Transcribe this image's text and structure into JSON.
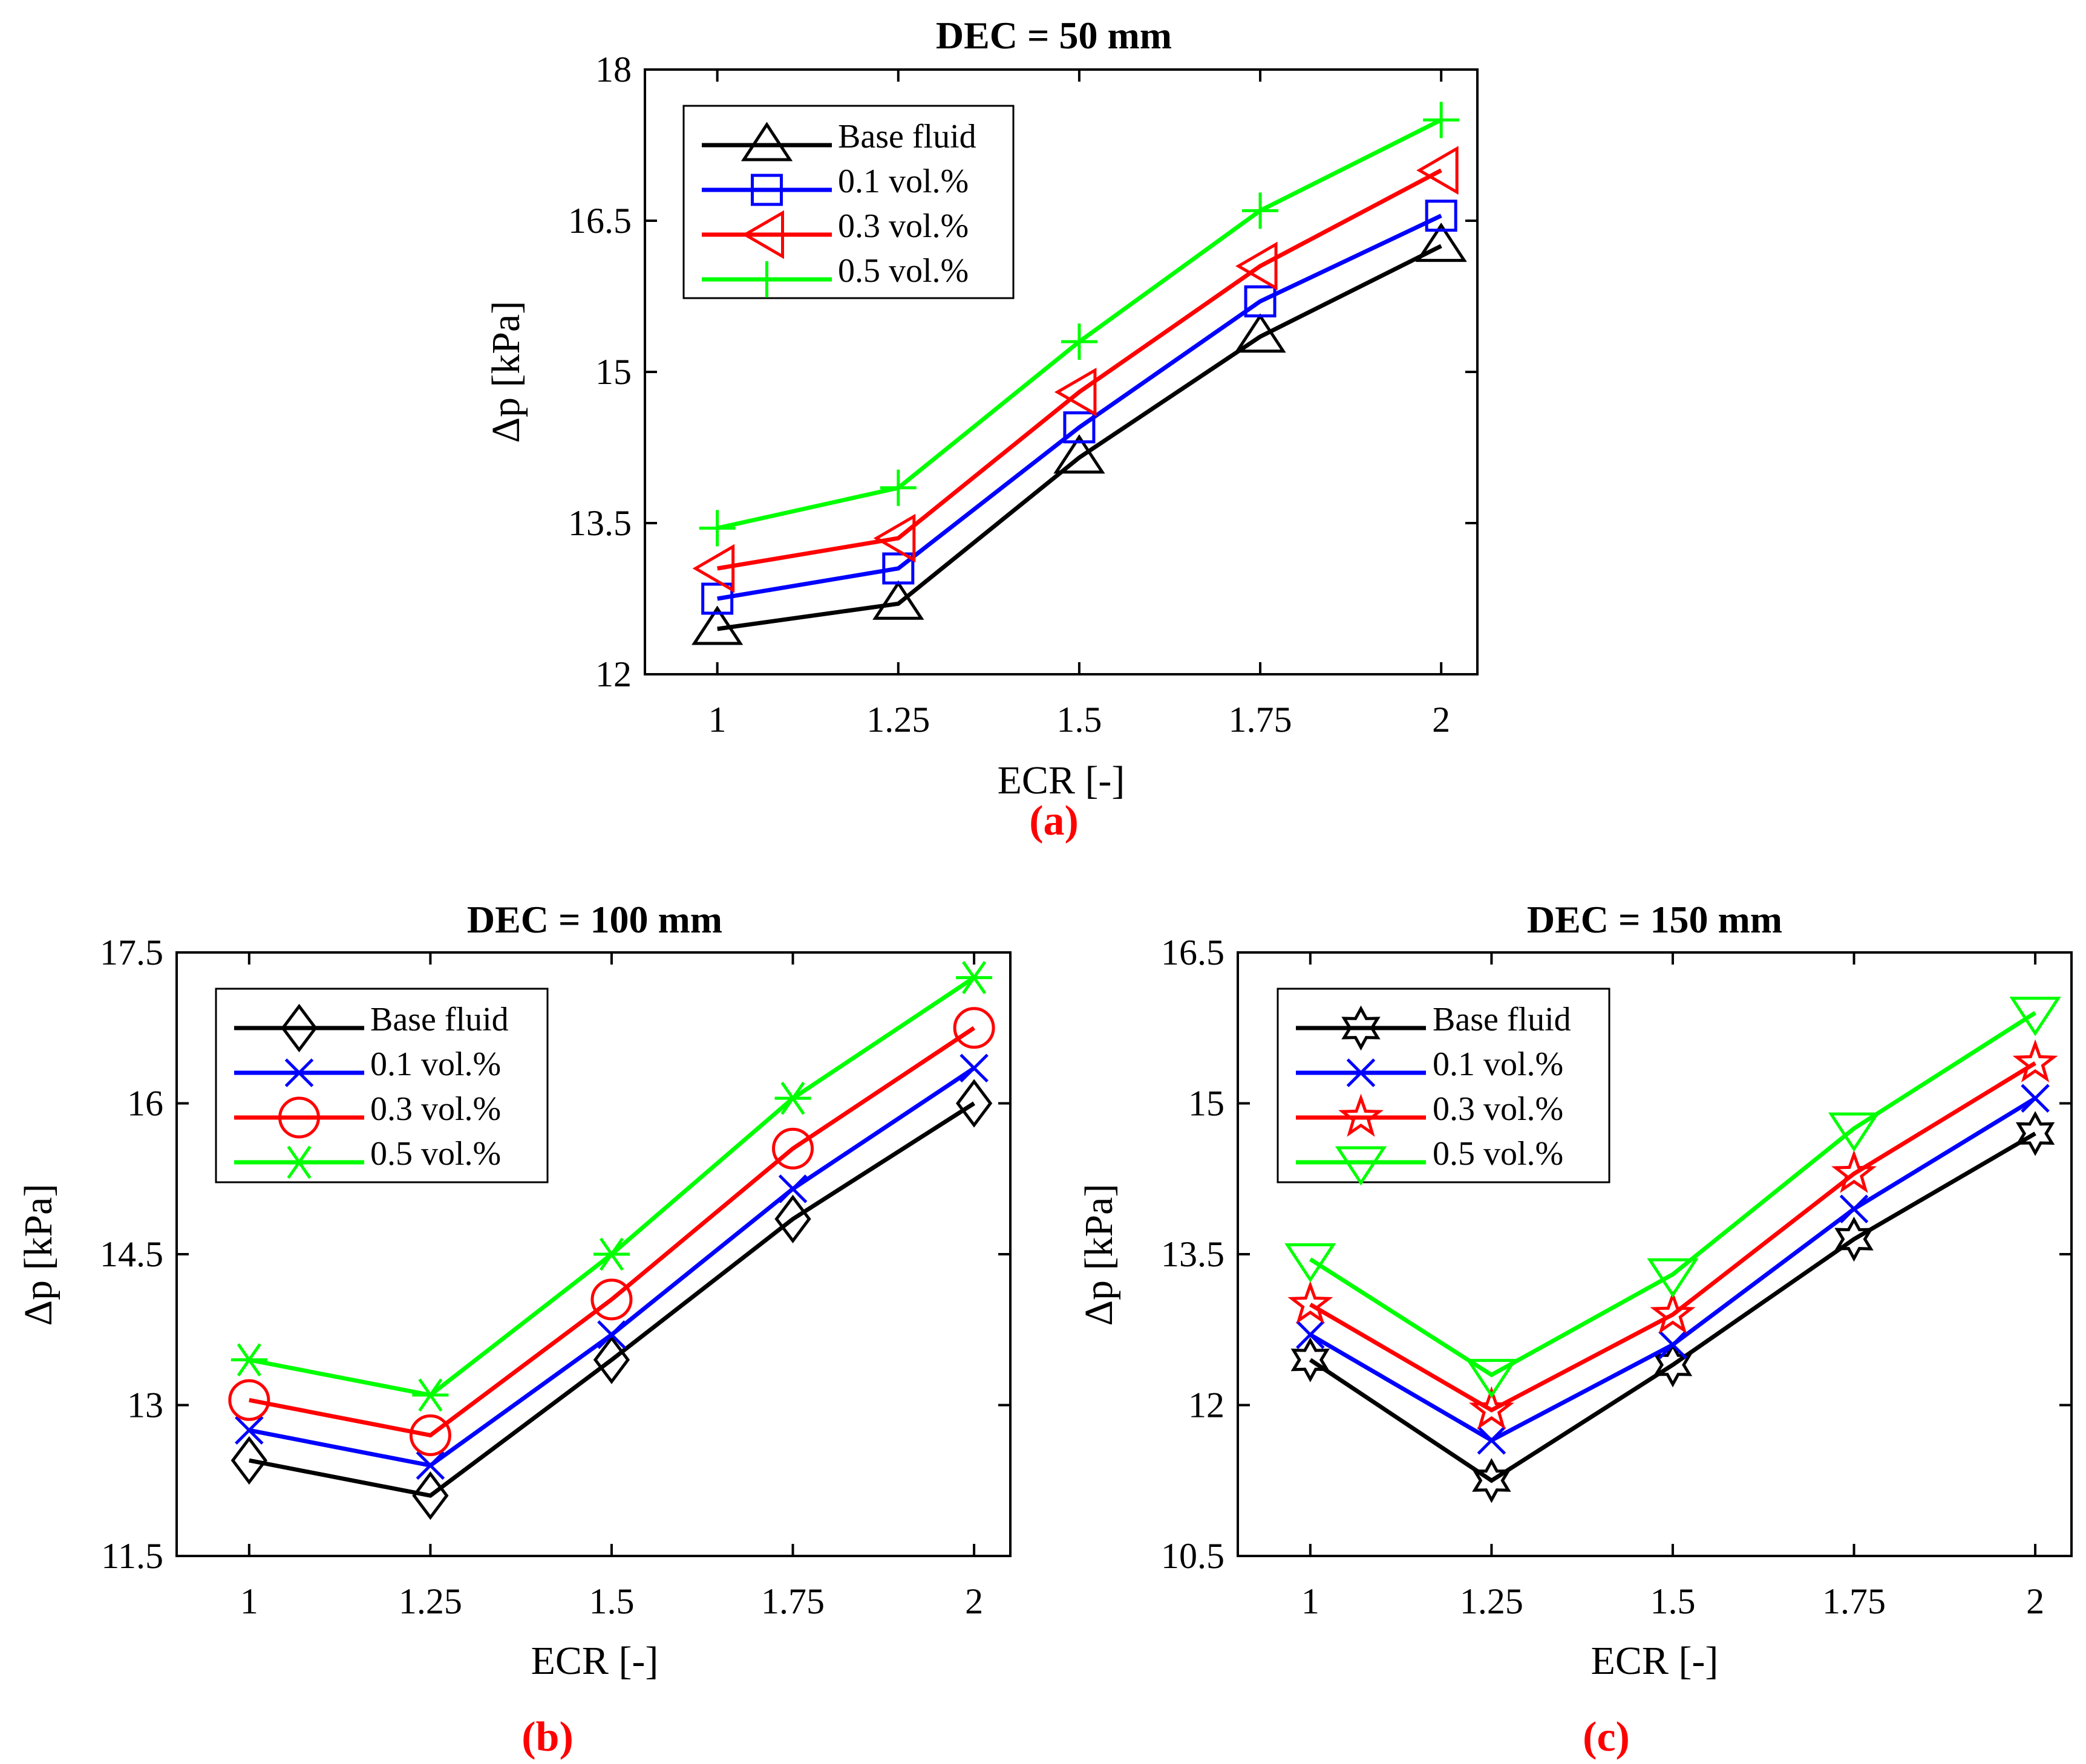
{
  "figure": {
    "panel_labels": [
      "(a)",
      "(b)",
      "(c)"
    ]
  },
  "colors": {
    "black": "#000000",
    "blue": "#0000ff",
    "red": "#ff0000",
    "green": "#00ff00",
    "panel_label": "#ff0000"
  },
  "chart_data": [
    {
      "type": "line",
      "title": "DEC = 50 mm",
      "panel_label": "(a)",
      "xlabel": "ECR [-]",
      "ylabel": "Δp [kPa]",
      "x": [
        1,
        1.25,
        1.5,
        1.75,
        2
      ],
      "x_tick_labels": [
        "1",
        "1.25",
        "1.5",
        "1.75",
        "2"
      ],
      "xlim": [
        0.9,
        2.05
      ],
      "ylim": [
        12,
        18
      ],
      "y_ticks": [
        12,
        13.5,
        15,
        16.5,
        18
      ],
      "y_tick_labels": [
        "12",
        "13.5",
        "15",
        "16.5",
        "18"
      ],
      "legend_position": "top-left",
      "series": [
        {
          "name": "Base fluid",
          "color": "#000000",
          "marker": "triangle-up",
          "values": [
            12.45,
            12.7,
            14.15,
            15.35,
            16.25
          ]
        },
        {
          "name": "0.1 vol.%",
          "color": "#0000ff",
          "marker": "square",
          "values": [
            12.75,
            13.05,
            14.45,
            15.7,
            16.55
          ]
        },
        {
          "name": "0.3 vol.%",
          "color": "#ff0000",
          "marker": "triangle-left",
          "values": [
            13.05,
            13.35,
            14.8,
            16.05,
            17.0
          ]
        },
        {
          "name": "0.5 vol.%",
          "color": "#00ff00",
          "marker": "plus",
          "values": [
            13.45,
            13.85,
            15.3,
            16.6,
            17.5
          ]
        }
      ]
    },
    {
      "type": "line",
      "title": "DEC = 100 mm",
      "panel_label": "(b)",
      "xlabel": "ECR [-]",
      "ylabel": "Δp [kPa]",
      "x": [
        1,
        1.25,
        1.5,
        1.75,
        2
      ],
      "x_tick_labels": [
        "1",
        "1.25",
        "1.5",
        "1.75",
        "2"
      ],
      "xlim": [
        0.9,
        2.05
      ],
      "ylim": [
        11.5,
        17.5
      ],
      "y_ticks": [
        11.5,
        13,
        14.5,
        16,
        17.5
      ],
      "y_tick_labels": [
        "11.5",
        "13",
        "14.5",
        "16",
        "17.5"
      ],
      "legend_position": "top-left",
      "series": [
        {
          "name": "Base fluid",
          "color": "#000000",
          "marker": "diamond",
          "values": [
            12.45,
            12.1,
            13.45,
            14.85,
            16.0
          ]
        },
        {
          "name": "0.1 vol.%",
          "color": "#0000ff",
          "marker": "x",
          "values": [
            12.75,
            12.4,
            13.7,
            15.15,
            16.35
          ]
        },
        {
          "name": "0.3 vol.%",
          "color": "#ff0000",
          "marker": "circle",
          "values": [
            13.05,
            12.7,
            14.05,
            15.55,
            16.75
          ]
        },
        {
          "name": "0.5 vol.%",
          "color": "#00ff00",
          "marker": "asterisk",
          "values": [
            13.45,
            13.1,
            14.5,
            16.05,
            17.25
          ]
        }
      ]
    },
    {
      "type": "line",
      "title": "DEC = 150 mm",
      "panel_label": "(c)",
      "xlabel": "ECR [-]",
      "ylabel": "Δp [kPa]",
      "x": [
        1,
        1.25,
        1.5,
        1.75,
        2
      ],
      "x_tick_labels": [
        "1",
        "1.25",
        "1.5",
        "1.75",
        "2"
      ],
      "xlim": [
        0.9,
        2.05
      ],
      "ylim": [
        10.5,
        16.5
      ],
      "y_ticks": [
        10.5,
        12,
        13.5,
        15,
        16.5
      ],
      "y_tick_labels": [
        "10.5",
        "12",
        "13.5",
        "15",
        "16.5"
      ],
      "legend_position": "top-left",
      "series": [
        {
          "name": "Base fluid",
          "color": "#000000",
          "marker": "hexagram",
          "values": [
            12.45,
            11.25,
            12.4,
            13.65,
            14.7
          ]
        },
        {
          "name": "0.1 vol.%",
          "color": "#0000ff",
          "marker": "x",
          "values": [
            12.7,
            11.65,
            12.6,
            13.95,
            15.05
          ]
        },
        {
          "name": "0.3 vol.%",
          "color": "#ff0000",
          "marker": "pentagram",
          "values": [
            13.0,
            11.95,
            12.9,
            14.3,
            15.4
          ]
        },
        {
          "name": "0.5 vol.%",
          "color": "#00ff00",
          "marker": "triangle-down",
          "values": [
            13.45,
            12.3,
            13.3,
            14.75,
            15.9
          ]
        }
      ]
    }
  ]
}
